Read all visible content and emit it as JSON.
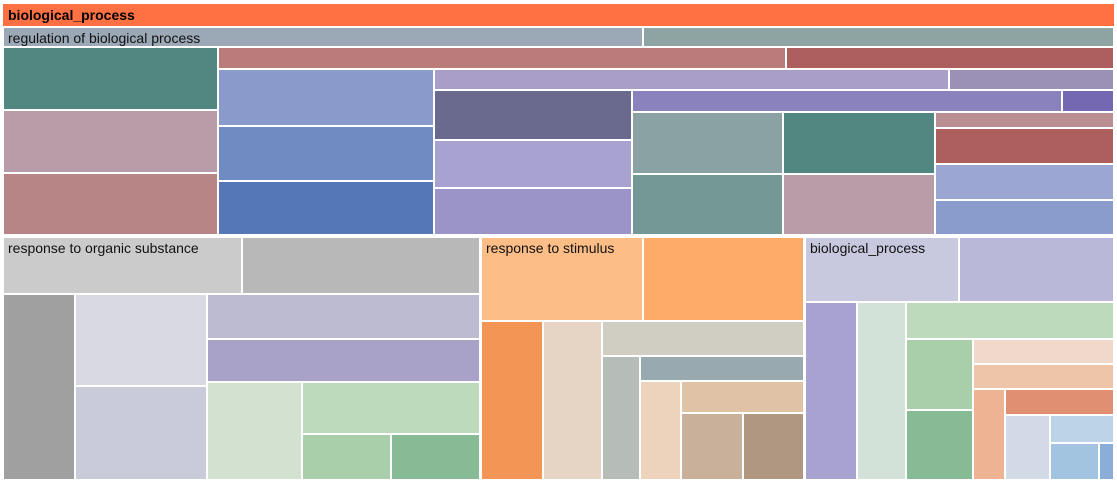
{
  "chart_data": {
    "type": "treemap",
    "root": "biological_process",
    "groups": [
      {
        "label": "regulation of biological process"
      },
      {
        "label": "response to organic substance"
      },
      {
        "label": "response to stimulus"
      },
      {
        "label": "biological_process"
      }
    ],
    "colors": {
      "root": "#ff7043",
      "regulation": "#9ba8b6",
      "organic": "#c9c9c9",
      "stimulus": "#fdbd86",
      "biological": "#c8c9df"
    }
  }
}
